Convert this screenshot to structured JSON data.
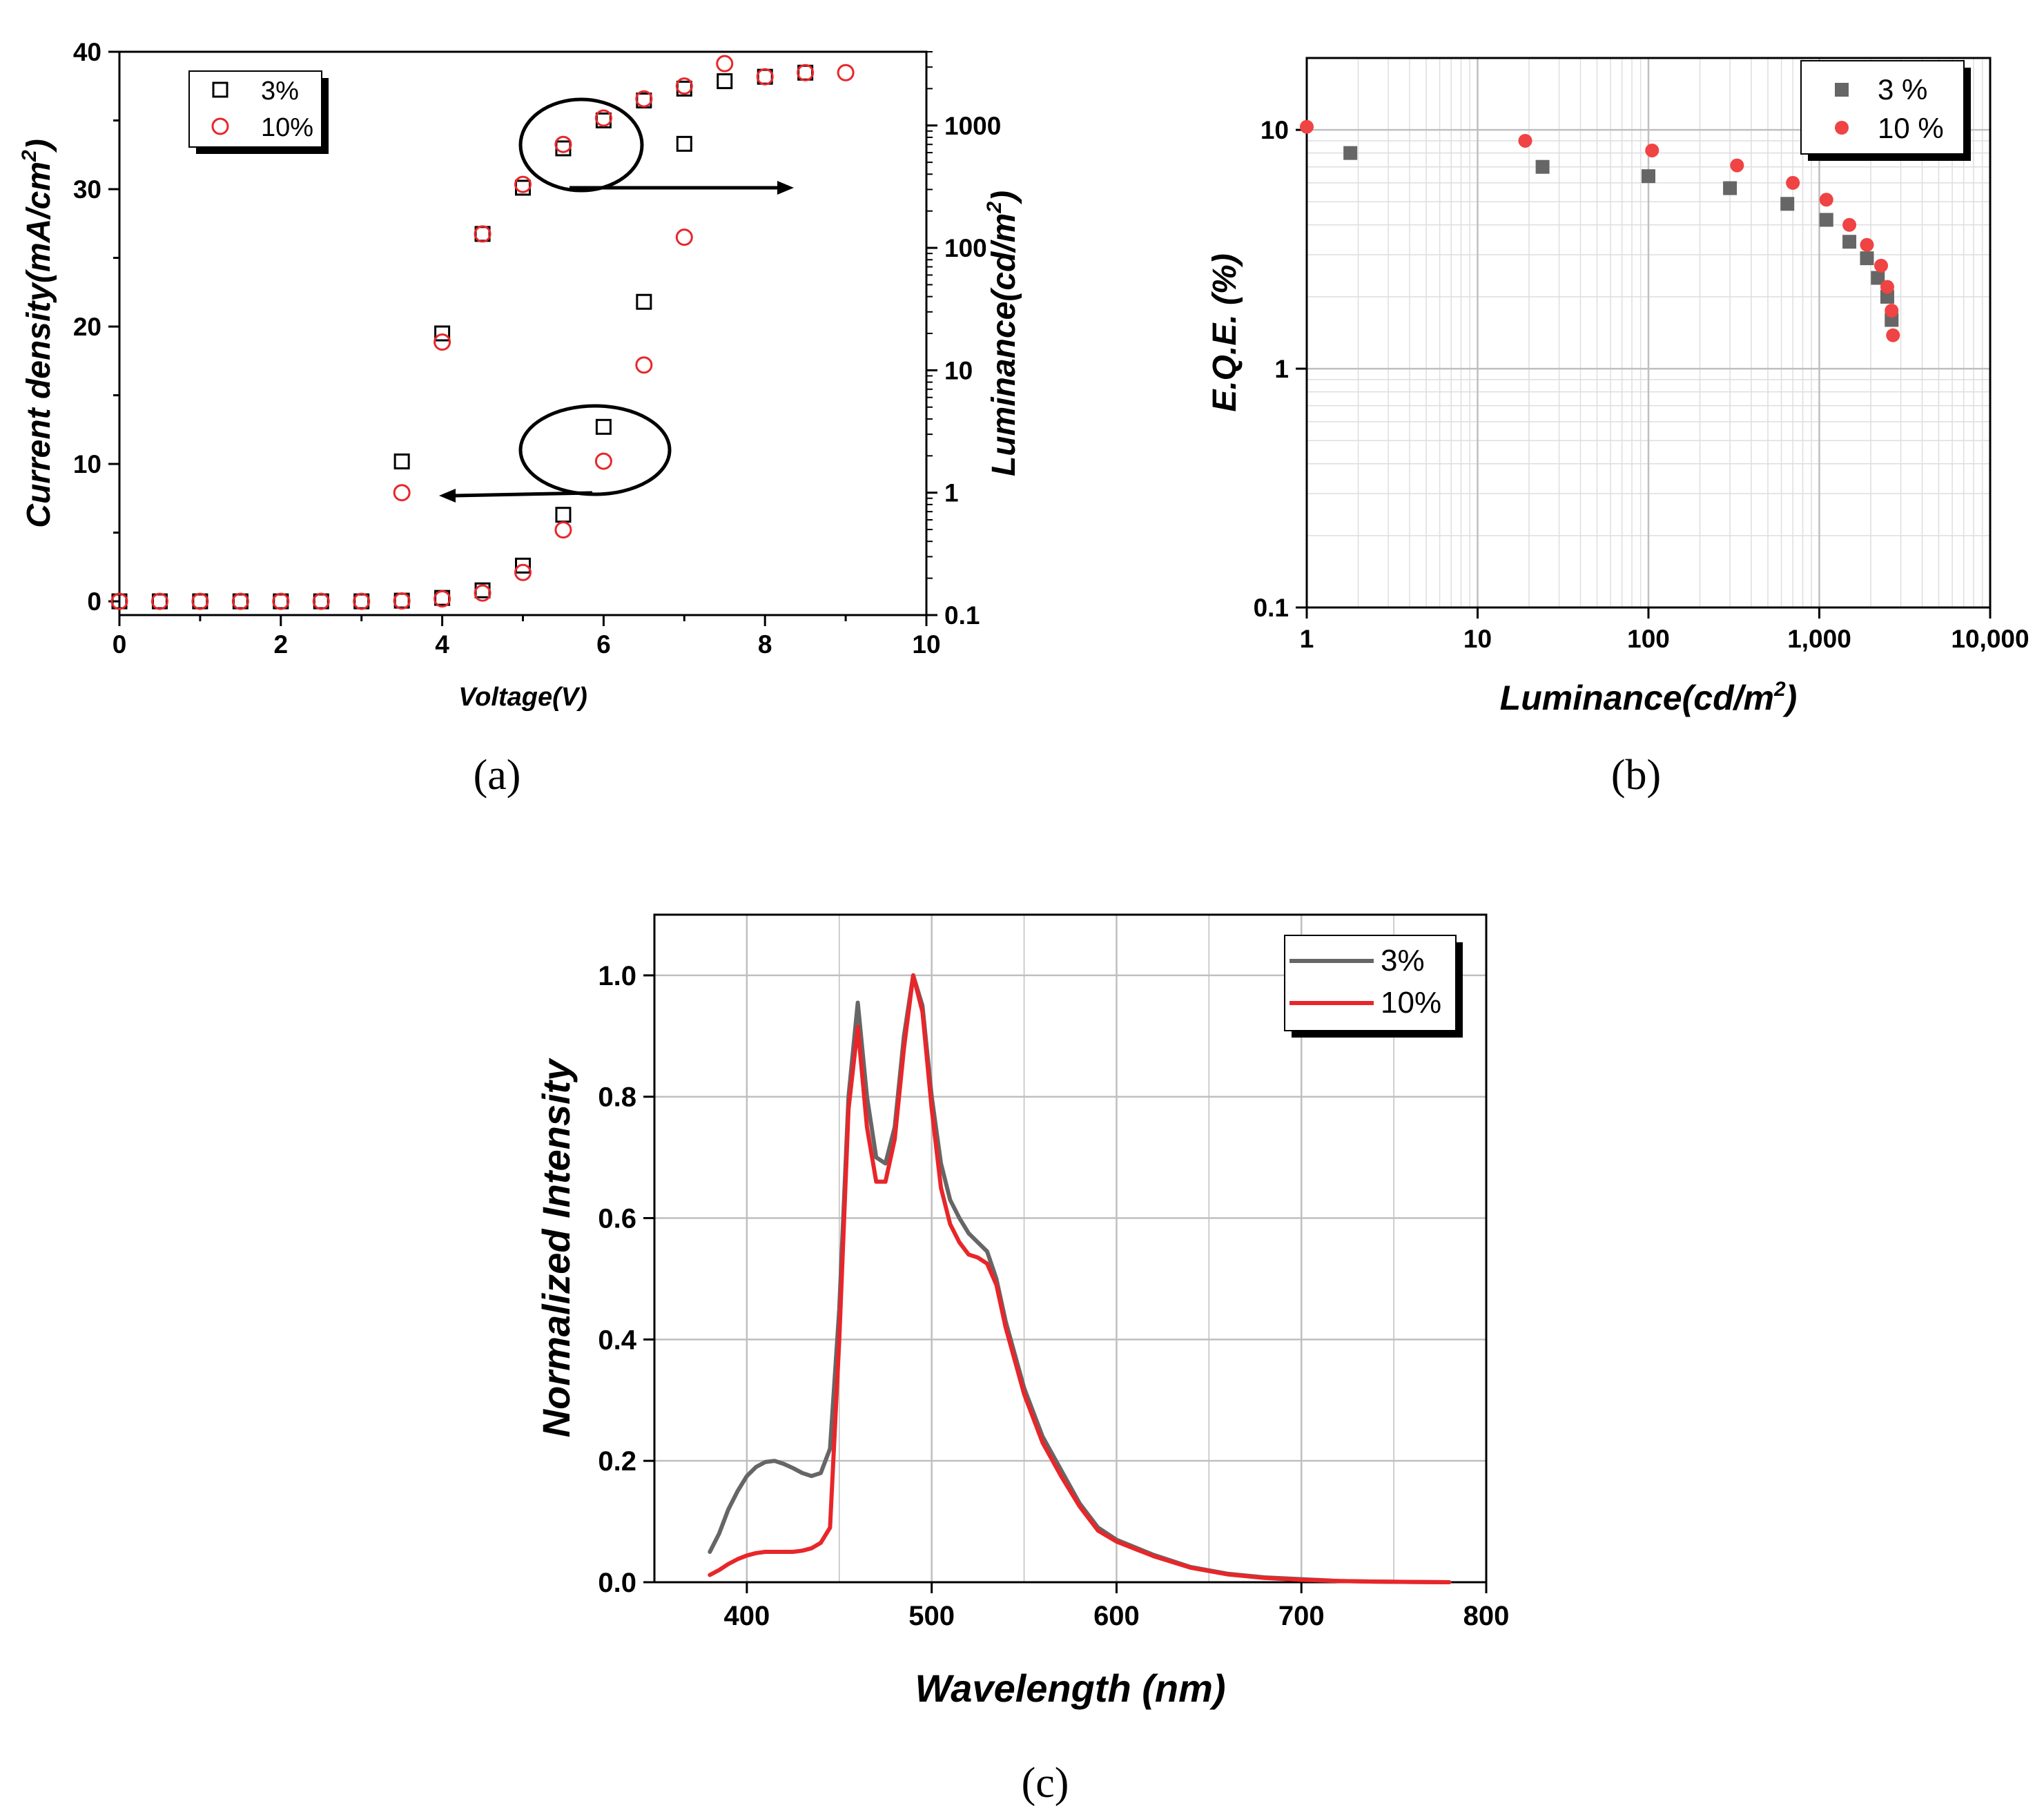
{
  "colors": {
    "black": "#000000",
    "red": "#e8262a",
    "red_fill": "#f04343",
    "gray": "#666666",
    "grid": "#bfbfbf",
    "grid_minor": "#dedede"
  },
  "chart_data": [
    {
      "id": "a",
      "type": "scatter",
      "panel_label": "(a)",
      "xlabel": "Voltage(V)",
      "ylabel": "Current density(mA/cm",
      "ylabel_sup": "2",
      "ylabel_close": ")",
      "y2label": "Luminance(cd/m",
      "y2label_sup": "2",
      "y2label_close": ")",
      "xlim": [
        0,
        10
      ],
      "ylim": [
        -1,
        40
      ],
      "y2lim": [
        0.1,
        4000
      ],
      "y2scale": "log",
      "xticks": [
        "0",
        "2",
        "4",
        "6",
        "8",
        "10"
      ],
      "yticks": [
        "0",
        "10",
        "20",
        "30",
        "40"
      ],
      "y2ticks": [
        "0.1",
        "1",
        "10",
        "100",
        "1000"
      ],
      "legend": {
        "position": "top-left",
        "entries": [
          "3%",
          "10%"
        ]
      },
      "annotations": [
        {
          "type": "ellipse-arrow",
          "encircles": "luminance",
          "arrow_direction": "right"
        },
        {
          "type": "ellipse-arrow",
          "encircles": "current density",
          "arrow_direction": "left"
        }
      ],
      "series": [
        {
          "name": "3%",
          "axis": "left",
          "quantity": "current density",
          "marker": "open-square",
          "x": [
            0,
            0.5,
            1,
            1.5,
            2,
            2.5,
            3,
            3.5,
            4,
            4.5,
            5,
            5.5,
            6,
            6.5,
            7
          ],
          "y": [
            0,
            0,
            0,
            0,
            0,
            0,
            0,
            0.05,
            0.25,
            0.8,
            2.6,
            6.3,
            12.7,
            21.8,
            33.3
          ]
        },
        {
          "name": "10%",
          "axis": "left",
          "quantity": "current density",
          "marker": "open-circle",
          "x": [
            0,
            0.5,
            1,
            1.5,
            2,
            2.5,
            3,
            3.5,
            4,
            4.5,
            5,
            5.5,
            6,
            6.5,
            7
          ],
          "y": [
            0,
            0,
            0,
            0,
            0,
            0,
            0,
            0.03,
            0.18,
            0.6,
            2.1,
            5.2,
            10.2,
            17.2,
            26.5
          ]
        },
        {
          "name": "3%",
          "axis": "right",
          "quantity": "luminance",
          "marker": "open-square",
          "x": [
            3.5,
            4,
            4.5,
            5,
            5.5,
            6,
            6.5,
            7,
            7.5,
            8,
            8.5
          ],
          "y": [
            1.8,
            20,
            130,
            310,
            650,
            1100,
            1600,
            2000,
            2300,
            2500,
            2700
          ]
        },
        {
          "name": "10%",
          "axis": "right",
          "quantity": "luminance",
          "marker": "open-circle",
          "x": [
            3.5,
            4,
            4.5,
            5,
            5.5,
            6,
            6.5,
            7,
            7.5,
            8,
            8.5,
            9
          ],
          "y": [
            1.0,
            17,
            130,
            330,
            700,
            1150,
            1650,
            2100,
            3200,
            2500,
            2700,
            2700
          ]
        }
      ]
    },
    {
      "id": "b",
      "type": "scatter",
      "panel_label": "(b)",
      "xlabel": "Luminance(cd/m",
      "xlabel_sup": "2",
      "xlabel_close": ")",
      "ylabel": "E.Q.E. (%)",
      "xscale": "log",
      "yscale": "log",
      "xlim": [
        1,
        10000
      ],
      "ylim": [
        0.1,
        20
      ],
      "xticks": [
        "1",
        "10",
        "100",
        "1,000",
        "10,000"
      ],
      "yticks": [
        "0.1",
        "1",
        "10"
      ],
      "grid": true,
      "legend": {
        "position": "top-right",
        "entries": [
          "3 %",
          "10 %"
        ]
      },
      "series": [
        {
          "name": "3 %",
          "marker": "filled-square",
          "x": [
            1.8,
            24,
            100,
            300,
            650,
            1100,
            1500,
            1900,
            2200,
            2500,
            2650
          ],
          "y": [
            8.0,
            7.0,
            6.4,
            5.7,
            4.9,
            4.2,
            3.4,
            2.9,
            2.4,
            2.0,
            1.6
          ]
        },
        {
          "name": "10 %",
          "marker": "filled-circle",
          "x": [
            1.0,
            19,
            105,
            330,
            700,
            1100,
            1500,
            1900,
            2300,
            2500,
            2650,
            2700
          ],
          "y": [
            10.3,
            9.0,
            8.2,
            7.1,
            6.0,
            5.1,
            4.0,
            3.3,
            2.7,
            2.2,
            1.75,
            1.38
          ]
        }
      ]
    },
    {
      "id": "c",
      "type": "line",
      "panel_label": "(c)",
      "xlabel": "Wavelength (nm)",
      "ylabel": "Normalized Intensity",
      "xlim": [
        350,
        800
      ],
      "ylim": [
        0,
        1.1
      ],
      "xticks": [
        "400",
        "500",
        "600",
        "700",
        "800"
      ],
      "yticks": [
        "0.0",
        "0.2",
        "0.4",
        "0.6",
        "0.8",
        "1.0"
      ],
      "grid": true,
      "legend": {
        "position": "top-right",
        "entries": [
          "3%",
          "10%"
        ]
      },
      "series": [
        {
          "name": "3%",
          "x": [
            380,
            385,
            390,
            395,
            400,
            405,
            410,
            415,
            420,
            425,
            430,
            435,
            440,
            445,
            450,
            455,
            460,
            465,
            470,
            475,
            480,
            485,
            490,
            495,
            500,
            505,
            510,
            515,
            520,
            525,
            530,
            535,
            540,
            550,
            560,
            570,
            580,
            590,
            600,
            620,
            640,
            660,
            680,
            700,
            720,
            740,
            760,
            780
          ],
          "y": [
            0.05,
            0.08,
            0.12,
            0.15,
            0.175,
            0.19,
            0.198,
            0.2,
            0.195,
            0.188,
            0.18,
            0.175,
            0.18,
            0.22,
            0.45,
            0.8,
            0.955,
            0.8,
            0.7,
            0.69,
            0.75,
            0.9,
            1.0,
            0.95,
            0.8,
            0.69,
            0.63,
            0.6,
            0.575,
            0.56,
            0.545,
            0.5,
            0.43,
            0.32,
            0.24,
            0.185,
            0.13,
            0.09,
            0.07,
            0.045,
            0.025,
            0.014,
            0.008,
            0.005,
            0.002,
            0.001,
            0.0005,
            0.0
          ]
        },
        {
          "name": "10%",
          "x": [
            380,
            385,
            390,
            395,
            400,
            405,
            410,
            415,
            420,
            425,
            430,
            435,
            440,
            445,
            450,
            455,
            460,
            465,
            470,
            475,
            480,
            485,
            490,
            495,
            500,
            505,
            510,
            515,
            520,
            525,
            530,
            535,
            540,
            550,
            560,
            570,
            580,
            590,
            600,
            620,
            640,
            660,
            680,
            700,
            720,
            740,
            760,
            780
          ],
          "y": [
            0.012,
            0.02,
            0.03,
            0.038,
            0.044,
            0.048,
            0.05,
            0.05,
            0.05,
            0.05,
            0.052,
            0.056,
            0.065,
            0.09,
            0.4,
            0.78,
            0.915,
            0.75,
            0.66,
            0.66,
            0.73,
            0.88,
            1.0,
            0.94,
            0.78,
            0.65,
            0.59,
            0.56,
            0.54,
            0.535,
            0.525,
            0.49,
            0.42,
            0.31,
            0.23,
            0.175,
            0.125,
            0.085,
            0.067,
            0.043,
            0.024,
            0.013,
            0.007,
            0.004,
            0.002,
            0.001,
            0.0005,
            0.0
          ]
        }
      ]
    }
  ]
}
